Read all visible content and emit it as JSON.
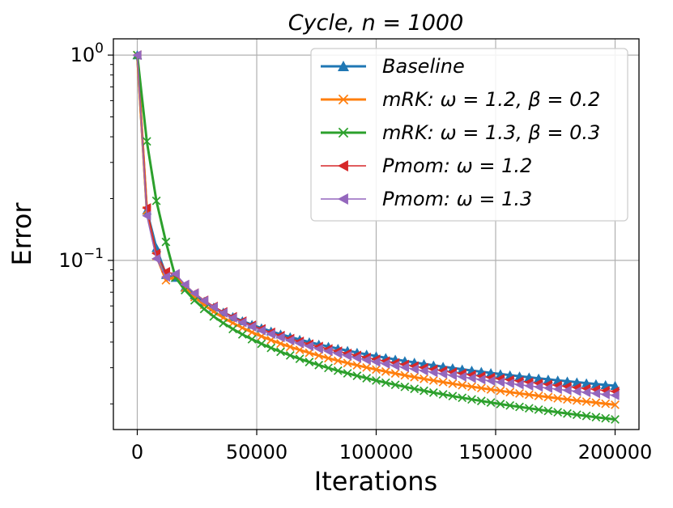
{
  "chart_data": {
    "type": "line",
    "title": "Cycle,    n = 1000",
    "xlabel": "Iterations",
    "ylabel": "Error",
    "xscale": "linear",
    "yscale": "log",
    "xlim": [
      -10000,
      210000
    ],
    "ylim": [
      0.015,
      1.2
    ],
    "xticks": [
      0,
      50000,
      100000,
      150000,
      200000
    ],
    "xtick_labels": [
      "0",
      "50000",
      "100000",
      "150000",
      "200000"
    ],
    "yticks": [
      1,
      0.1
    ],
    "ytick_labels": [
      {
        "base": "10",
        "exp": "0"
      },
      {
        "base": "10",
        "exp": "−1"
      }
    ],
    "grid": true,
    "legend_position": "top-right",
    "series": [
      {
        "name": "Baseline",
        "color": "#1f77b4",
        "marker": "triangle-up",
        "linewidth": 3,
        "end": 0.0245,
        "decay": 0.48
      },
      {
        "name": "mRK: ω = 1.2, β = 0.2",
        "color": "#ff7f0e",
        "marker": "x",
        "linewidth": 3,
        "end": 0.0198,
        "decay": 0.57
      },
      {
        "name": "mRK: ω = 1.3, β = 0.3",
        "color": "#2ca02c",
        "marker": "x",
        "linewidth": 3,
        "end": 0.0168,
        "decay": 0.63
      },
      {
        "name": "Pmom: ω = 1.2",
        "color": "#d62728",
        "marker": "triangle-left",
        "linewidth": 1.5,
        "end": 0.023,
        "decay": 0.52
      },
      {
        "name": "Pmom: ω = 1.3",
        "color": "#9467bd",
        "marker": "triangle-left",
        "linewidth": 1.5,
        "end": 0.022,
        "decay": 0.54
      }
    ],
    "x_points": [
      0,
      4000,
      8000,
      12000,
      16000,
      20000,
      24000,
      28000,
      32000,
      36000,
      40000,
      44000,
      48000,
      52000,
      56000,
      60000,
      64000,
      68000,
      72000,
      76000,
      80000,
      84000,
      88000,
      92000,
      96000,
      100000,
      104000,
      108000,
      112000,
      116000,
      120000,
      124000,
      128000,
      132000,
      136000,
      140000,
      144000,
      148000,
      152000,
      156000,
      160000,
      164000,
      168000,
      172000,
      176000,
      180000,
      184000,
      188000,
      192000,
      196000,
      200000
    ]
  }
}
